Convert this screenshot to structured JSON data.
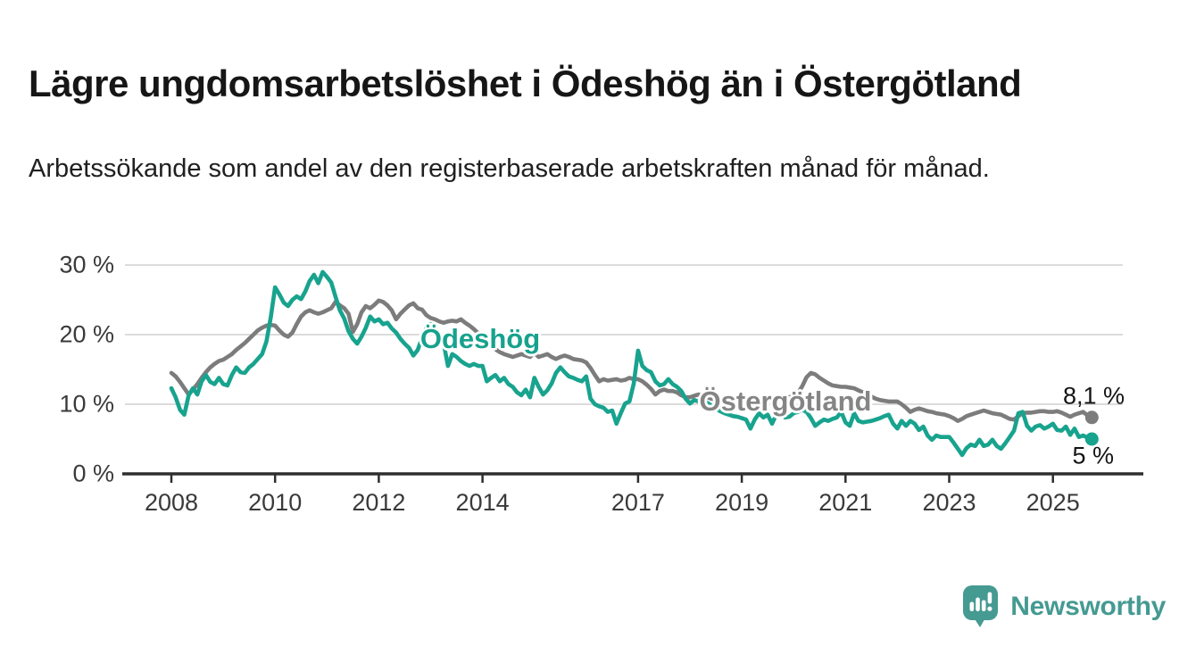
{
  "header": {
    "title": "Lägre ungdomsarbetslöshet i Ödeshög än i Östergötland",
    "subtitle": "Arbetssökande som andel av den registerbaserade arbetskraften månad för månad."
  },
  "footer": {
    "logo_text": "Newsworthy",
    "logo_color": "#459a92"
  },
  "chart_data": {
    "type": "line",
    "title": "Lägre ungdomsarbetslöshet i Ödeshög än i Östergötland",
    "xlabel": "",
    "ylabel": "Arbetssökande som andel av den registerbaserade arbetskraften",
    "x_start_year": 2008,
    "x_step_months": 1,
    "ylim": [
      0,
      30
    ],
    "grid": "horizontal",
    "legend": "inline-labels",
    "axis_color": "#2e2e2e",
    "grid_color": "#dcdcdc",
    "y_ticks": [
      {
        "value": 0,
        "label": "0 %"
      },
      {
        "value": 10,
        "label": "10 %"
      },
      {
        "value": 20,
        "label": "20 %"
      },
      {
        "value": 30,
        "label": "30 %"
      }
    ],
    "x_ticks": [
      {
        "year": 2008,
        "label": "2008"
      },
      {
        "year": 2010,
        "label": "2010"
      },
      {
        "year": 2012,
        "label": "2012"
      },
      {
        "year": 2014,
        "label": "2014"
      },
      {
        "year": 2017,
        "label": "2017"
      },
      {
        "year": 2019,
        "label": "2019"
      },
      {
        "year": 2021,
        "label": "2021"
      },
      {
        "year": 2023,
        "label": "2023"
      },
      {
        "year": 2025,
        "label": "2025"
      }
    ],
    "series": [
      {
        "name": "Östergötland",
        "color": "#7c7c7c",
        "end_label": "8,1 %",
        "end_value": 8.1,
        "values": [
          14.5,
          14.0,
          13.2,
          12.3,
          11.4,
          12.1,
          12.9,
          13.8,
          14.6,
          15.3,
          15.8,
          16.2,
          16.4,
          16.8,
          17.2,
          17.8,
          18.3,
          18.8,
          19.4,
          20.0,
          20.6,
          21.0,
          21.3,
          21.4,
          21.3,
          20.6,
          20.0,
          19.7,
          20.3,
          21.5,
          22.6,
          23.2,
          23.5,
          23.2,
          23.0,
          23.2,
          23.5,
          23.8,
          24.7,
          24.2,
          23.8,
          23.0,
          20.4,
          21.5,
          23.2,
          24.1,
          23.8,
          24.3,
          24.9,
          24.7,
          24.2,
          23.5,
          22.2,
          23.0,
          23.6,
          24.2,
          24.5,
          23.8,
          23.6,
          22.8,
          22.4,
          22.2,
          21.9,
          21.7,
          21.9,
          22.0,
          21.9,
          22.2,
          21.7,
          21.3,
          20.8,
          20.2,
          19.6,
          19.0,
          18.4,
          17.9,
          17.5,
          17.2,
          17.0,
          16.8,
          17.0,
          17.2,
          17.0,
          16.8,
          17.4,
          16.8,
          17.0,
          17.2,
          16.8,
          16.5,
          16.8,
          17.0,
          16.8,
          16.5,
          16.4,
          16.3,
          16.0,
          15.2,
          14.2,
          13.3,
          13.6,
          13.4,
          13.5,
          13.6,
          13.4,
          13.5,
          13.8,
          13.6,
          13.6,
          13.3,
          12.8,
          12.2,
          11.4,
          11.9,
          12.1,
          11.9,
          11.9,
          11.7,
          11.3,
          11.0,
          11.0,
          11.2,
          11.4,
          11.2,
          11.0,
          10.8,
          10.7,
          10.8,
          11.0,
          10.8,
          10.7,
          10.6,
          10.6,
          10.5,
          10.6,
          10.7,
          10.6,
          10.5,
          10.6,
          10.7,
          10.8,
          10.7,
          10.8,
          11.0,
          11.2,
          11.6,
          12.6,
          13.9,
          14.5,
          14.3,
          13.8,
          13.4,
          13.0,
          12.7,
          12.6,
          12.5,
          12.5,
          12.4,
          12.3,
          12.0,
          11.7,
          11.4,
          11.1,
          10.8,
          10.6,
          10.5,
          10.4,
          10.4,
          10.4,
          10.0,
          9.5,
          8.9,
          9.2,
          9.4,
          9.2,
          9.0,
          8.9,
          8.7,
          8.6,
          8.5,
          8.3,
          8.0,
          7.6,
          7.9,
          8.3,
          8.5,
          8.7,
          8.9,
          9.1,
          8.9,
          8.7,
          8.6,
          8.5,
          8.2,
          7.9,
          7.8,
          8.3,
          8.7,
          8.8,
          8.8,
          8.9,
          9.0,
          9.0,
          8.9,
          8.9,
          9.0,
          8.8,
          8.5,
          8.2,
          8.5,
          8.7,
          8.9,
          8.4,
          8.1
        ]
      },
      {
        "name": "Ödeshög",
        "color": "#18a38e",
        "end_label": "5 %",
        "end_value": 5.0,
        "values": [
          12.3,
          11.0,
          9.2,
          8.5,
          11.3,
          12.3,
          11.4,
          13.3,
          14.2,
          13.2,
          12.9,
          13.8,
          12.9,
          12.7,
          14.2,
          15.3,
          14.6,
          14.5,
          15.3,
          15.8,
          16.5,
          17.2,
          19.0,
          22.5,
          26.8,
          25.8,
          24.6,
          24.1,
          25.0,
          25.5,
          25.1,
          26.2,
          27.7,
          28.6,
          27.4,
          29.0,
          28.3,
          27.5,
          25.4,
          23.5,
          22.3,
          20.5,
          19.4,
          18.7,
          19.7,
          21.0,
          22.6,
          21.9,
          22.2,
          21.5,
          21.7,
          20.9,
          20.3,
          19.4,
          18.7,
          18.1,
          17.0,
          17.8,
          19.5,
          21.0,
          21.5,
          20.5,
          19.6,
          18.8,
          15.5,
          17.2,
          16.8,
          16.2,
          15.8,
          15.5,
          15.8,
          15.5,
          15.5,
          13.3,
          13.8,
          14.2,
          13.3,
          13.8,
          12.9,
          12.5,
          11.7,
          11.3,
          12.1,
          11.0,
          13.8,
          12.5,
          11.4,
          12.0,
          13.0,
          14.5,
          15.3,
          14.6,
          14.0,
          13.8,
          13.5,
          13.3,
          14.0,
          10.8,
          10.0,
          9.7,
          9.5,
          8.9,
          9.1,
          7.2,
          8.7,
          10.1,
          10.4,
          13.0,
          17.7,
          15.5,
          14.9,
          14.6,
          13.3,
          12.7,
          12.9,
          13.6,
          12.9,
          12.5,
          11.9,
          10.8,
          10.1,
          10.6,
          10.4,
          10.6,
          10.2,
          9.8,
          9.4,
          9.0,
          8.7,
          8.5,
          8.3,
          8.2,
          8.0,
          7.8,
          6.5,
          7.8,
          8.7,
          8.1,
          8.5,
          7.2,
          8.5,
          8.7,
          8.1,
          8.2,
          8.7,
          8.9,
          9.2,
          8.9,
          8.0,
          6.9,
          7.4,
          7.8,
          7.6,
          7.9,
          8.1,
          8.9,
          7.4,
          6.9,
          8.7,
          7.6,
          7.4,
          7.5,
          7.6,
          7.8,
          8.0,
          8.3,
          8.5,
          7.2,
          6.5,
          7.6,
          6.9,
          7.6,
          7.2,
          6.3,
          6.8,
          5.5,
          4.9,
          5.5,
          5.3,
          5.3,
          5.3,
          4.5,
          3.6,
          2.7,
          3.7,
          4.2,
          4.0,
          4.9,
          4.0,
          4.2,
          4.9,
          4.0,
          3.6,
          4.4,
          5.3,
          6.2,
          8.7,
          8.9,
          6.9,
          6.2,
          6.8,
          7.0,
          6.5,
          6.8,
          7.2,
          6.3,
          6.2,
          6.8,
          5.6,
          6.5,
          5.3,
          5.5,
          5.2,
          5.0
        ]
      }
    ]
  }
}
